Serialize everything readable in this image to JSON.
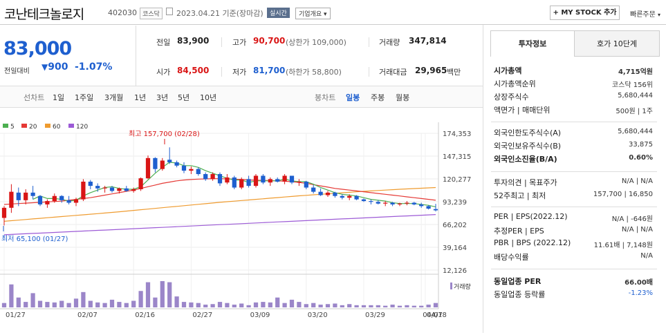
{
  "header": {
    "name": "코난테크놀로지",
    "code": "402030",
    "market": "코스닥",
    "date_text": "2023.04.21 기준(장마감)",
    "realtime_badge": "실시간",
    "corp_overview": "기업개요",
    "my_stock": "+ MY STOCK 추가",
    "quick_order": "빠른주문"
  },
  "price": {
    "current": "83,000",
    "change_label": "전일대비",
    "change_value": "900",
    "change_pct": "-1.07%"
  },
  "quote": {
    "prev_label": "전일",
    "prev": "83,900",
    "high_label": "고가",
    "high": "90,700",
    "upper_limit": "(상한가 109,000)",
    "volume_label": "거래량",
    "volume": "347,814",
    "open_label": "시가",
    "open": "84,500",
    "low_label": "저가",
    "low": "81,700",
    "lower_limit": "(하한가 58,800)",
    "amount_label": "거래대금",
    "amount": "29,965",
    "amount_unit": "백만"
  },
  "period": {
    "line_label": "선차트",
    "line_items": [
      "1일",
      "1주일",
      "3개월",
      "1년",
      "3년",
      "5년",
      "10년"
    ],
    "candle_label": "봉차트",
    "candle_items": [
      "일봉",
      "주봉",
      "월봉"
    ],
    "candle_selected": "일봉"
  },
  "colors": {
    "up": "#d91515",
    "down": "#1e5fcf",
    "ma5": "#4caf50",
    "ma20": "#e53935",
    "ma60": "#ef9b2f",
    "ma120": "#9c5ad6",
    "volume": "#9b86c9"
  },
  "chart_data": {
    "type": "candlestick",
    "title": "",
    "legend": [
      "5",
      "20",
      "60",
      "120"
    ],
    "y_ticks": [
      "174,353",
      "147,315",
      "120,277",
      "93,239",
      "66,202",
      "39,164",
      "12,126"
    ],
    "ylim": [
      12126,
      174353
    ],
    "x_ticks": [
      "01/27",
      "02/07",
      "02/16",
      "02/27",
      "03/09",
      "03/20",
      "03/29",
      "04/07",
      "04/18"
    ],
    "annotations": {
      "max": "최고 157,700 (02/28)",
      "min": "최저 65,100 (01/27)"
    },
    "volume_label": "거래량",
    "candles": [
      [
        74000,
        88000,
        65100,
        86000
      ],
      [
        86000,
        114000,
        80000,
        105000
      ],
      [
        104000,
        110000,
        88000,
        95000
      ],
      [
        95000,
        108000,
        90000,
        104000
      ],
      [
        104000,
        112000,
        96000,
        100000
      ],
      [
        100000,
        101000,
        88000,
        90000
      ],
      [
        90000,
        96000,
        86000,
        94000
      ],
      [
        94000,
        103000,
        92000,
        100000
      ],
      [
        100000,
        101000,
        92000,
        95000
      ],
      [
        95000,
        100000,
        90000,
        92000
      ],
      [
        92000,
        98000,
        88000,
        96000
      ],
      [
        96000,
        120000,
        94000,
        117000
      ],
      [
        117000,
        119000,
        108000,
        112000
      ],
      [
        112000,
        115000,
        105000,
        109000
      ],
      [
        109000,
        112000,
        104000,
        110000
      ],
      [
        110000,
        112000,
        104000,
        106000
      ],
      [
        106000,
        110000,
        103000,
        109000
      ],
      [
        109000,
        112000,
        105000,
        106000
      ],
      [
        106000,
        110000,
        104000,
        108000
      ],
      [
        108000,
        122000,
        106000,
        121000
      ],
      [
        121000,
        148000,
        120000,
        145000
      ],
      [
        145000,
        146000,
        128000,
        132000
      ],
      [
        132000,
        145000,
        130000,
        142000
      ],
      [
        143000,
        157700,
        138000,
        140000
      ],
      [
        140000,
        142000,
        134000,
        136000
      ],
      [
        136000,
        140000,
        127000,
        130000
      ],
      [
        130000,
        135000,
        126000,
        132000
      ],
      [
        132000,
        134000,
        124000,
        126000
      ],
      [
        126000,
        128000,
        118000,
        120000
      ],
      [
        120000,
        128000,
        118000,
        126000
      ],
      [
        126000,
        128000,
        112000,
        115000
      ],
      [
        116000,
        126000,
        114000,
        122000
      ],
      [
        122000,
        124000,
        108000,
        110000
      ],
      [
        110000,
        122000,
        108000,
        120000
      ],
      [
        120000,
        124000,
        110000,
        112000
      ],
      [
        112000,
        126000,
        110000,
        124000
      ],
      [
        124000,
        126000,
        114000,
        116000
      ],
      [
        116000,
        122000,
        112000,
        120000
      ],
      [
        120000,
        122000,
        116000,
        117000
      ],
      [
        117000,
        126000,
        114000,
        124000
      ],
      [
        124000,
        124000,
        114000,
        116000
      ],
      [
        116000,
        120000,
        112000,
        117000
      ],
      [
        117000,
        118000,
        108000,
        110000
      ],
      [
        110000,
        113000,
        103000,
        105000
      ],
      [
        105000,
        109000,
        100000,
        101000
      ],
      [
        101000,
        106000,
        99000,
        104000
      ],
      [
        104000,
        105000,
        98000,
        100000
      ],
      [
        100000,
        102000,
        96000,
        98000
      ],
      [
        98000,
        102000,
        95000,
        100000
      ],
      [
        100000,
        101000,
        95000,
        96000
      ],
      [
        96000,
        97000,
        93000,
        94000
      ],
      [
        94000,
        96000,
        90000,
        93000
      ],
      [
        93000,
        95000,
        90000,
        91000
      ],
      [
        91000,
        94000,
        88000,
        92000
      ],
      [
        92000,
        93000,
        88000,
        90000
      ],
      [
        90000,
        92000,
        88000,
        91000
      ],
      [
        91000,
        94000,
        89000,
        92000
      ],
      [
        92000,
        93000,
        89000,
        90000
      ],
      [
        90000,
        92000,
        86000,
        88000
      ],
      [
        88000,
        89000,
        84000,
        85000
      ],
      [
        84500,
        90700,
        81700,
        83000
      ]
    ],
    "volumes": [
      8,
      42,
      18,
      10,
      26,
      12,
      10,
      9,
      12,
      8,
      16,
      28,
      12,
      9,
      8,
      14,
      10,
      8,
      12,
      30,
      46,
      18,
      48,
      46,
      20,
      10,
      9,
      8,
      5,
      6,
      10,
      8,
      5,
      7,
      4,
      9,
      10,
      9,
      18,
      8,
      14,
      10,
      6,
      8,
      5,
      6,
      7,
      4,
      6,
      4,
      4,
      4,
      4,
      3,
      5,
      3,
      4,
      3,
      3,
      5,
      8
    ],
    "ma5": [
      null,
      null,
      null,
      null,
      96000,
      100000,
      97000,
      97000,
      96000,
      94000,
      95000,
      100000,
      104000,
      107000,
      110000,
      111000,
      109000,
      108000,
      108000,
      111000,
      119000,
      127000,
      134000,
      140000,
      139000,
      136000,
      136000,
      134000,
      130000,
      127000,
      124000,
      121000,
      119000,
      119000,
      116000,
      118000,
      118000,
      118000,
      118000,
      120000,
      118000,
      117000,
      117000,
      114000,
      110000,
      107000,
      104000,
      102000,
      101000,
      100000,
      98000,
      96000,
      95000,
      94000,
      92000,
      91000,
      91000,
      91000,
      90000,
      89000,
      87000
    ],
    "ma20": [
      90000,
      90500,
      91000,
      91500,
      92000,
      92500,
      93000,
      93500,
      94000,
      95000,
      96000,
      97000,
      98000,
      99500,
      101000,
      102500,
      104000,
      105500,
      107000,
      109000,
      111000,
      113000,
      115000,
      116500,
      118000,
      119000,
      119500,
      120000,
      120300,
      120500,
      120500,
      120300,
      120000,
      119500,
      119000,
      118700,
      118500,
      118200,
      118000,
      117500,
      117000,
      116000,
      115000,
      113500,
      112000,
      110500,
      109000,
      108000,
      107000,
      106000,
      105000,
      104000,
      103000,
      102000,
      101000,
      100000,
      99000,
      98000,
      97000,
      96000,
      95000
    ],
    "ma60": [
      70000,
      70700,
      71400,
      72100,
      72800,
      73500,
      74200,
      74900,
      75600,
      76300,
      77000,
      77700,
      78400,
      79100,
      79800,
      80500,
      81300,
      82100,
      82900,
      83700,
      84500,
      85300,
      86100,
      86900,
      87700,
      88500,
      89300,
      90100,
      90900,
      91700,
      92500,
      93200,
      93900,
      94600,
      95300,
      96000,
      96700,
      97400,
      98100,
      98800,
      99500,
      100200,
      100800,
      101400,
      102000,
      102600,
      103200,
      103800,
      104400,
      105000,
      105500,
      106000,
      106500,
      107000,
      107500,
      108000,
      108400,
      108800,
      109200,
      109600,
      110000
    ],
    "ma120": [
      54000,
      54400,
      54800,
      55200,
      55600,
      56000,
      56400,
      56800,
      57200,
      57600,
      58000,
      58400,
      58800,
      59200,
      59600,
      60000,
      60400,
      60800,
      61200,
      61600,
      62000,
      62400,
      62800,
      63200,
      63600,
      64000,
      64400,
      64800,
      65200,
      65600,
      66000,
      66400,
      66800,
      67200,
      67600,
      68000,
      68400,
      68800,
      69200,
      69600,
      70000,
      70400,
      70800,
      71200,
      71600,
      72000,
      72400,
      72800,
      73200,
      73600,
      74000,
      74400,
      74800,
      75200,
      75600,
      76000,
      76400,
      76800,
      77200,
      77600,
      78000
    ]
  },
  "panel": {
    "tab_invest": "투자정보",
    "tab_hoga": "호가 10단계",
    "rows1": [
      {
        "label": "시가총액",
        "value": "4,715억원",
        "bold": true
      },
      {
        "label": "시가총액순위",
        "value": "코스닥 156위"
      },
      {
        "label": "상장주식수",
        "value": "5,680,444"
      },
      {
        "label": "액면가 | 매매단위",
        "value": "500원 | 1주"
      }
    ],
    "rows2": [
      {
        "label": "외국인한도주식수(A)",
        "value": "5,680,444"
      },
      {
        "label": "외국인보유주식수(B)",
        "value": "33,875"
      },
      {
        "label": "외국인소진율(B/A)",
        "value": "0.60%",
        "bold": true
      }
    ],
    "rows3": [
      {
        "label": "투자의견 | 목표주가",
        "value": "N/A | N/A"
      },
      {
        "label": "52주최고 | 최저",
        "value": "157,700 | 16,850"
      }
    ],
    "rows4": [
      {
        "label": "PER | EPS(2022.12)",
        "value": "N/A | -646원"
      },
      {
        "label": "추정PER | EPS",
        "value": "N/A | N/A"
      },
      {
        "label": "PBR | BPS (2022.12)",
        "value": "11.61배 | 7,148원"
      },
      {
        "label": "배당수익률",
        "value": "N/A"
      }
    ],
    "rows5": [
      {
        "label": "동일업종 PER",
        "value": "66.00배",
        "bold": true
      },
      {
        "label": "동일업종 등락률",
        "value": "-1.23%",
        "blue": true
      }
    ]
  }
}
